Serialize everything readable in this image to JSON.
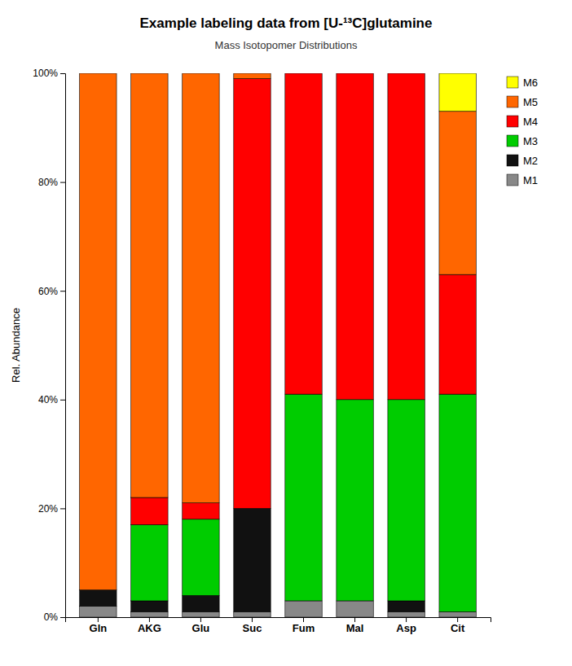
{
  "chart_data": {
    "type": "bar",
    "stacked": true,
    "title": "Example labeling data from [U-¹³C]glutamine",
    "subtitle": "Mass Isotopomer Distributions",
    "y_label": "Rel. Abundance",
    "categories": [
      "Gln",
      "AKG",
      "Glu",
      "Suc",
      "Fum",
      "Mal",
      "Asp",
      "Cit"
    ],
    "series": [
      {
        "name": "M1",
        "color": "#888888",
        "values": [
          0.02,
          0.01,
          0.01,
          0.01,
          0.03,
          0.03,
          0.01,
          0.01
        ]
      },
      {
        "name": "M2",
        "color": "#111111",
        "values": [
          0.03,
          0.02,
          0.03,
          0.19,
          0.0,
          0.0,
          0.02,
          0.0
        ]
      },
      {
        "name": "M3",
        "color": "#00cc00",
        "values": [
          0.0,
          0.14,
          0.14,
          0.0,
          0.38,
          0.37,
          0.37,
          0.4
        ]
      },
      {
        "name": "M4",
        "color": "#ff0000",
        "values": [
          0.0,
          0.05,
          0.03,
          0.79,
          0.59,
          0.6,
          0.6,
          0.22
        ]
      },
      {
        "name": "M5",
        "color": "#ff6600",
        "values": [
          0.95,
          0.78,
          0.79,
          0.01,
          0.0,
          0.0,
          0.0,
          0.3
        ]
      },
      {
        "name": "M6",
        "color": "#ffff00",
        "values": [
          0.0,
          0.0,
          0.0,
          0.0,
          0.0,
          0.0,
          0.0,
          0.07
        ]
      }
    ],
    "ylim": [
      0,
      1.0
    ],
    "yticks": [
      {
        "value": 0,
        "label": "0%"
      },
      {
        "value": 0.2,
        "label": "20%"
      },
      {
        "value": 0.4,
        "label": "40%"
      },
      {
        "value": 0.6,
        "label": "60%"
      },
      {
        "value": 0.8,
        "label": "80%"
      },
      {
        "value": 1.0,
        "label": "100%"
      }
    ],
    "grid": false,
    "legend": "right"
  }
}
